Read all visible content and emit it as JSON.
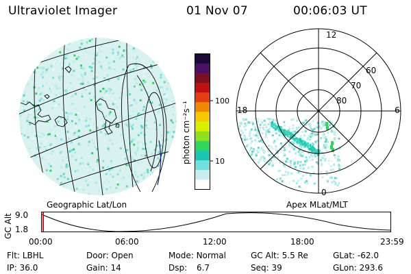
{
  "header": {
    "title": "Ultraviolet Imager",
    "date": "01 Nov 07",
    "time": "00:06:03 UT"
  },
  "left_panel": {
    "caption": "Geographic Lat/Lon"
  },
  "right_panel": {
    "caption": "Apex MLat/MLT",
    "mlt_labels": {
      "top": "12",
      "left": "18",
      "right": "6",
      "bottom": "0"
    },
    "lat_labels": [
      "60",
      "70",
      "80"
    ]
  },
  "colorbar": {
    "unit_label": "photon cm⁻²s⁻¹",
    "ticks": [
      "100",
      "10"
    ],
    "colors": [
      "#1a0a3a",
      "#4b0f6a",
      "#7a1020",
      "#c01010",
      "#e24010",
      "#f08a00",
      "#f5c800",
      "#d8f000",
      "#8ee01a",
      "#2ed65a",
      "#1ac8b0",
      "#6fe0e0",
      "#c8eef0",
      "#ffffff"
    ]
  },
  "timeline": {
    "axis_label": "GC Alt",
    "y_ticks": [
      "9.0",
      "1.8"
    ],
    "x_ticks": [
      "00:00",
      "06:00",
      "12:00",
      "18:00",
      "23:59"
    ]
  },
  "info": {
    "row1": [
      {
        "label": "Flt:",
        "value": "LBHL"
      },
      {
        "label": "Door:",
        "value": "Open"
      },
      {
        "label": "Mode:",
        "value": "Normal"
      },
      {
        "label": "GC Alt:",
        "value": "5.5 Re"
      },
      {
        "label": "GLat:",
        "value": "-62.0"
      }
    ],
    "row2": [
      {
        "label": "IP:",
        "value": "36.0"
      },
      {
        "label": "Gain:",
        "value": "14"
      },
      {
        "label": "Dsp:",
        "value": "6.7"
      },
      {
        "label": "Seq:",
        "value": "39"
      },
      {
        "label": "GLon:",
        "value": "293.6"
      }
    ]
  }
}
